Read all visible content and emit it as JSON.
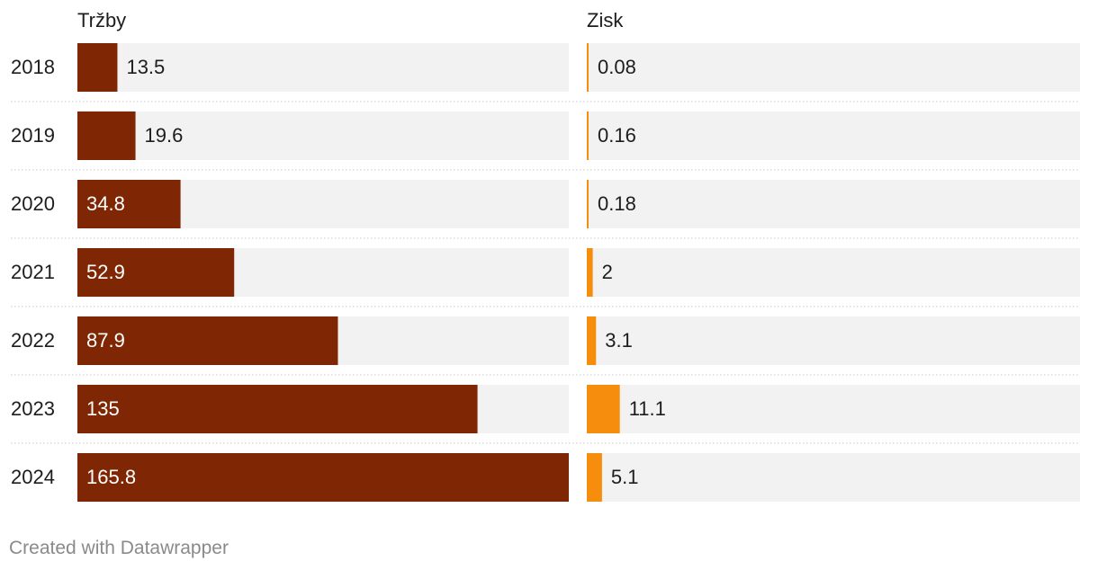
{
  "chart_data": {
    "type": "bar",
    "categories": [
      "2018",
      "2019",
      "2020",
      "2021",
      "2022",
      "2023",
      "2024"
    ],
    "series": [
      {
        "name": "Tržby",
        "values": [
          13.5,
          19.6,
          34.8,
          52.9,
          87.9,
          135,
          165.8
        ],
        "labels": [
          "13.5",
          "19.6",
          "34.8",
          "52.9",
          "87.9",
          "135",
          "165.8"
        ],
        "color": "#7f2704",
        "max": 165.8
      },
      {
        "name": "Zisk",
        "values": [
          0.08,
          0.16,
          0.18,
          2,
          3.1,
          11.1,
          5.1
        ],
        "labels": [
          "0.08",
          "0.16",
          "0.18",
          "2",
          "3.1",
          "11.1",
          "5.1"
        ],
        "color": "#f68d0c",
        "max": 165.8
      }
    ],
    "background_color": "#f2f2f2",
    "grid": false,
    "legend": "none"
  },
  "footer": {
    "credit": "Created with Datawrapper"
  }
}
